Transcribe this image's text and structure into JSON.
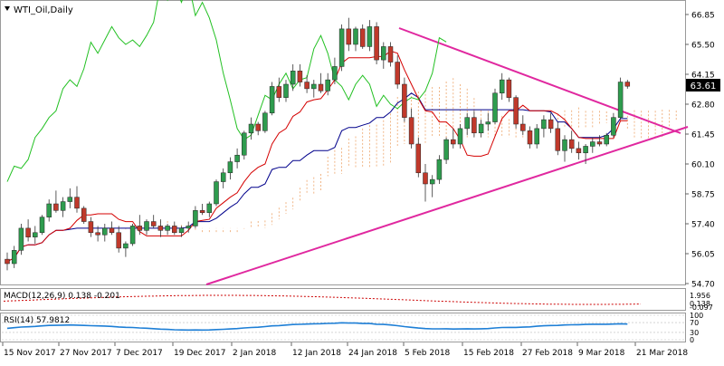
{
  "chart_data": {
    "type": "candlestick",
    "title": "WTI_Oil,Daily",
    "price_axis": {
      "ylim": [
        54.7,
        67.1
      ],
      "ticks": [
        "66.85",
        "65.50",
        "64.15",
        "62.80",
        "61.45",
        "60.10",
        "58.75",
        "57.40",
        "56.05",
        "54.70"
      ],
      "current_price": "63.61",
      "current_value": 63.61
    },
    "date_axis": {
      "ticks": [
        "15 Nov 2017",
        "27 Nov 2017",
        "7 Dec 2017",
        "19 Dec 2017",
        "2 Jan 2018",
        "12 Jan 2018",
        "24 Jan 2018",
        "5 Feb 2018",
        "15 Feb 2018",
        "27 Feb 2018",
        "9 Mar 2018",
        "21 Mar 2018"
      ]
    },
    "candles_ohlc_approx": [
      [
        55.8,
        56.1,
        55.3,
        55.6
      ],
      [
        55.6,
        56.4,
        55.4,
        56.2
      ],
      [
        56.2,
        57.4,
        56.0,
        57.2
      ],
      [
        57.2,
        57.6,
        56.6,
        56.8
      ],
      [
        56.8,
        57.3,
        56.5,
        57.0
      ],
      [
        57.0,
        57.8,
        56.9,
        57.7
      ],
      [
        57.7,
        58.5,
        57.5,
        58.3
      ],
      [
        58.3,
        58.9,
        57.9,
        58.0
      ],
      [
        58.0,
        58.6,
        57.7,
        58.4
      ],
      [
        58.4,
        59.0,
        58.1,
        58.6
      ],
      [
        58.6,
        59.1,
        57.9,
        58.1
      ],
      [
        58.1,
        58.2,
        57.4,
        57.5
      ],
      [
        57.5,
        57.7,
        56.8,
        57.0
      ],
      [
        57.0,
        57.3,
        56.6,
        56.9
      ],
      [
        56.9,
        57.4,
        56.6,
        57.2
      ],
      [
        57.2,
        57.5,
        56.9,
        57.0
      ],
      [
        57.0,
        57.3,
        56.1,
        56.3
      ],
      [
        56.3,
        56.6,
        55.9,
        56.5
      ],
      [
        56.5,
        57.4,
        56.4,
        57.3
      ],
      [
        57.3,
        57.8,
        56.9,
        57.1
      ],
      [
        57.1,
        57.6,
        56.9,
        57.5
      ],
      [
        57.5,
        57.8,
        57.2,
        57.3
      ],
      [
        57.3,
        57.6,
        56.8,
        57.1
      ],
      [
        57.1,
        57.4,
        56.9,
        57.3
      ],
      [
        57.3,
        57.5,
        56.9,
        57.0
      ],
      [
        57.0,
        57.3,
        56.8,
        57.2
      ],
      [
        57.2,
        57.5,
        57.0,
        57.3
      ],
      [
        57.3,
        58.2,
        57.2,
        58.0
      ],
      [
        58.0,
        58.3,
        57.8,
        57.9
      ],
      [
        57.9,
        58.4,
        57.7,
        58.3
      ],
      [
        58.3,
        59.4,
        58.2,
        59.3
      ],
      [
        59.3,
        59.9,
        59.0,
        59.7
      ],
      [
        59.7,
        60.4,
        59.4,
        60.2
      ],
      [
        60.2,
        60.8,
        59.9,
        60.5
      ],
      [
        60.5,
        61.6,
        60.3,
        61.5
      ],
      [
        61.5,
        62.2,
        61.2,
        61.9
      ],
      [
        61.9,
        62.0,
        61.4,
        61.6
      ],
      [
        61.6,
        62.5,
        61.5,
        62.4
      ],
      [
        62.4,
        63.8,
        62.3,
        63.6
      ],
      [
        63.6,
        64.0,
        62.9,
        63.1
      ],
      [
        63.1,
        63.9,
        62.9,
        63.7
      ],
      [
        63.7,
        64.6,
        63.4,
        64.3
      ],
      [
        64.3,
        64.6,
        63.6,
        63.8
      ],
      [
        63.8,
        64.1,
        63.3,
        63.5
      ],
      [
        63.5,
        63.9,
        63.1,
        63.7
      ],
      [
        63.7,
        64.2,
        63.3,
        63.4
      ],
      [
        63.4,
        64.2,
        63.2,
        63.9
      ],
      [
        63.9,
        64.9,
        63.7,
        64.5
      ],
      [
        64.5,
        66.4,
        64.3,
        66.2
      ],
      [
        66.2,
        66.7,
        65.2,
        65.5
      ],
      [
        65.5,
        66.3,
        65.2,
        66.2
      ],
      [
        66.2,
        66.4,
        65.3,
        65.4
      ],
      [
        65.4,
        66.6,
        65.2,
        66.3
      ],
      [
        66.3,
        66.5,
        64.6,
        64.8
      ],
      [
        64.8,
        65.6,
        64.4,
        65.4
      ],
      [
        65.4,
        65.6,
        64.5,
        64.7
      ],
      [
        64.7,
        65.0,
        63.5,
        63.7
      ],
      [
        63.7,
        64.0,
        62.0,
        62.2
      ],
      [
        62.2,
        62.6,
        60.8,
        61.0
      ],
      [
        61.0,
        61.3,
        59.5,
        59.7
      ],
      [
        59.7,
        60.1,
        58.4,
        59.2
      ],
      [
        59.2,
        59.6,
        58.6,
        59.4
      ],
      [
        59.4,
        60.5,
        59.2,
        60.3
      ],
      [
        60.3,
        61.3,
        60.1,
        61.2
      ],
      [
        61.2,
        61.7,
        60.8,
        61.0
      ],
      [
        61.0,
        61.9,
        60.8,
        61.7
      ],
      [
        61.7,
        62.4,
        61.4,
        62.2
      ],
      [
        62.2,
        62.5,
        61.3,
        61.5
      ],
      [
        61.5,
        62.1,
        61.3,
        61.9
      ],
      [
        61.9,
        62.4,
        61.6,
        62.0
      ],
      [
        62.0,
        63.5,
        61.9,
        63.3
      ],
      [
        63.3,
        64.2,
        63.0,
        63.9
      ],
      [
        63.9,
        64.0,
        62.9,
        63.1
      ],
      [
        63.1,
        63.2,
        61.7,
        61.9
      ],
      [
        61.9,
        62.3,
        61.4,
        61.6
      ],
      [
        61.6,
        61.8,
        60.8,
        61.0
      ],
      [
        61.0,
        61.9,
        60.8,
        61.7
      ],
      [
        61.7,
        62.3,
        61.3,
        62.1
      ],
      [
        62.1,
        62.4,
        61.5,
        61.7
      ],
      [
        61.7,
        62.0,
        60.5,
        60.7
      ],
      [
        60.7,
        61.4,
        60.2,
        61.2
      ],
      [
        61.2,
        61.6,
        60.6,
        60.8
      ],
      [
        60.8,
        61.1,
        60.3,
        60.6
      ],
      [
        60.6,
        61.0,
        60.1,
        60.9
      ],
      [
        60.9,
        61.3,
        60.6,
        61.1
      ],
      [
        61.1,
        61.4,
        60.9,
        61.0
      ],
      [
        61.0,
        61.5,
        60.9,
        61.4
      ],
      [
        61.4,
        62.4,
        61.3,
        62.2
      ],
      [
        62.2,
        64.0,
        62.1,
        63.8
      ],
      [
        63.8,
        63.9,
        63.5,
        63.61
      ]
    ],
    "overlays": {
      "tenkan_color": "#d40000",
      "kijun_color": "#00008b",
      "chikou_color": "#22c022",
      "cloud_color": "#e8883a",
      "trendline_color": "#e0289f"
    },
    "trendlines": [
      {
        "from": [
          "24 Jan 2018",
          66.3
        ],
        "to": [
          "21 Mar 2018",
          61.4
        ]
      },
      {
        "from": [
          "19 Dec 2017",
          54.7
        ],
        "to": [
          "21 Mar 2018",
          61.6
        ]
      }
    ],
    "macd": {
      "label": "MACD(12,26,9) 0.138 -0.201",
      "ticks": [
        "1.956",
        "0.138",
        "-0.097"
      ],
      "line_color": "#cc0000"
    },
    "rsi": {
      "label": "RSI(14) 57.9812",
      "ticks": [
        "100",
        "70",
        "30",
        "0"
      ],
      "value": 57.9812,
      "line_color": "#1e7fd6"
    },
    "colors": {
      "bull": "#2e9c4e",
      "bear": "#c0392b"
    }
  }
}
